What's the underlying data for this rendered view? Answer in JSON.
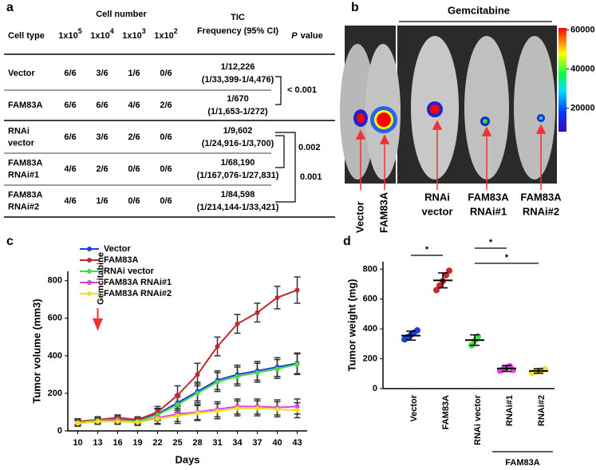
{
  "panel_a": {
    "label": "a",
    "header": {
      "cell_type": "Cell type",
      "cell_number": "Cell number",
      "doses": [
        {
          "base": "1x10",
          "exp": "5"
        },
        {
          "base": "1x10",
          "exp": "4"
        },
        {
          "base": "1x10",
          "exp": "3"
        },
        {
          "base": "1x10",
          "exp": "2"
        }
      ],
      "tic": [
        "TIC",
        "Frequency (95% CI)"
      ],
      "p_value": [
        "P",
        "value"
      ]
    },
    "rows": [
      {
        "name": [
          "Vector"
        ],
        "counts": [
          "6/6",
          "3/6",
          "1/6",
          "0/6"
        ],
        "tic": [
          "1/12,226",
          "(1/33,399-1/4,476)"
        ]
      },
      {
        "name": [
          "FAM83A"
        ],
        "counts": [
          "6/6",
          "6/6",
          "4/6",
          "2/6"
        ],
        "tic": [
          "1/670",
          "(1/1,653-1/272)"
        ]
      },
      {
        "name": [
          "RNAi",
          "vector"
        ],
        "counts": [
          "6/6",
          "3/6",
          "2/6",
          "0/6"
        ],
        "tic": [
          "1/9,602",
          "(1/24,916-1/3,700)"
        ]
      },
      {
        "name": [
          "FAM83A",
          "RNAi#1"
        ],
        "counts": [
          "4/6",
          "2/6",
          "0/6",
          "0/6"
        ],
        "tic": [
          "1/68,190",
          "(1/167,076-1/27,831)"
        ]
      },
      {
        "name": [
          "FAM83A",
          "RNAi#2"
        ],
        "counts": [
          "4/6",
          "1/6",
          "0/6",
          "0/6"
        ],
        "tic": [
          "1/84,598",
          "(1/214,144-1/33,421)"
        ]
      }
    ],
    "p_values": [
      "< 0.001",
      "0.002",
      "0.001"
    ]
  },
  "panel_b": {
    "label": "b",
    "treatment": "Gemcitabine",
    "groups": [
      [
        "Vector"
      ],
      [
        "FAM83A"
      ],
      [
        "RNAi",
        "vector"
      ],
      [
        "FAM83A",
        "RNAi#1"
      ],
      [
        "FAM83A",
        "RNAi#2"
      ]
    ],
    "colorbar": {
      "lim": [
        8000,
        61000
      ],
      "ticks": [
        20000,
        40000,
        60000
      ]
    }
  },
  "chart_data": [
    {
      "type": "line",
      "label": "c",
      "xlabel": "Days",
      "ylabel": "Tumor volume (mm3)",
      "x": [
        10,
        13,
        16,
        19,
        22,
        25,
        28,
        31,
        34,
        37,
        40,
        43
      ],
      "xlim": [
        8.5,
        44.5
      ],
      "xticks": [
        10,
        13,
        16,
        19,
        22,
        25,
        28,
        31,
        34,
        37,
        40,
        43
      ],
      "ylim": [
        0,
        850
      ],
      "yticks": [
        0,
        200,
        400,
        600,
        800
      ],
      "legend": "upper left",
      "annotation": {
        "text": "Gemcitabine",
        "x": 13
      },
      "series": [
        {
          "name": "Vector",
          "color": "#1f3fd6",
          "values": [
            45,
            60,
            65,
            55,
            90,
            150,
            210,
            270,
            300,
            320,
            340,
            360
          ],
          "errors": [
            15,
            15,
            15,
            15,
            30,
            40,
            50,
            50,
            50,
            50,
            50,
            55
          ]
        },
        {
          "name": "FAM83A",
          "color": "#c0282a",
          "values": [
            50,
            60,
            70,
            60,
            100,
            190,
            300,
            450,
            570,
            630,
            710,
            750
          ],
          "errors": [
            15,
            15,
            15,
            15,
            30,
            50,
            60,
            50,
            50,
            50,
            60,
            70
          ]
        },
        {
          "name": "RNAi vector",
          "color": "#44dd44",
          "values": [
            45,
            55,
            60,
            50,
            85,
            140,
            200,
            260,
            290,
            310,
            330,
            355
          ],
          "errors": [
            15,
            15,
            15,
            15,
            30,
            40,
            50,
            50,
            50,
            50,
            50,
            55
          ]
        },
        {
          "name": "FAM83A RNAi#1",
          "color": "#e040e0",
          "values": [
            40,
            50,
            55,
            45,
            70,
            90,
            100,
            115,
            130,
            130,
            125,
            130
          ],
          "errors": [
            15,
            15,
            15,
            15,
            30,
            40,
            40,
            40,
            40,
            40,
            40,
            40
          ]
        },
        {
          "name": "FAM83A RNAi#2",
          "color": "#f0e020",
          "values": [
            40,
            50,
            50,
            45,
            65,
            80,
            95,
            105,
            120,
            120,
            115,
            110
          ],
          "errors": [
            15,
            15,
            15,
            15,
            30,
            40,
            40,
            40,
            40,
            40,
            40,
            40
          ]
        }
      ]
    },
    {
      "type": "dot",
      "label": "d",
      "ylabel": "Tumor weight (mg)",
      "categories": [
        "Vector",
        "FAM83A",
        "RNAi vector",
        "RNAi#1",
        "RNAi#2"
      ],
      "group_label": "FAM83A",
      "colors": [
        "#1f3fd6",
        "#c0282a",
        "#44dd44",
        "#e040e0",
        "#f0e020"
      ],
      "points": [
        [
          330,
          345,
          360,
          375,
          390
        ],
        [
          660,
          690,
          720,
          760,
          790
        ],
        [
          290,
          320,
          350
        ],
        [
          120,
          130,
          140,
          150,
          125
        ],
        [
          105,
          115,
          120,
          125,
          130
        ]
      ],
      "means": [
        355,
        725,
        325,
        135,
        118
      ],
      "sds": [
        30,
        50,
        35,
        20,
        15
      ],
      "ylim": [
        0,
        850
      ],
      "yticks": [
        0,
        200,
        400,
        600,
        800
      ],
      "significance": [
        {
          "pair": [
            0,
            1
          ],
          "label": "*"
        },
        {
          "pair": [
            2,
            3
          ],
          "label": "*"
        },
        {
          "pair": [
            2,
            4
          ],
          "label": "*"
        }
      ]
    }
  ]
}
